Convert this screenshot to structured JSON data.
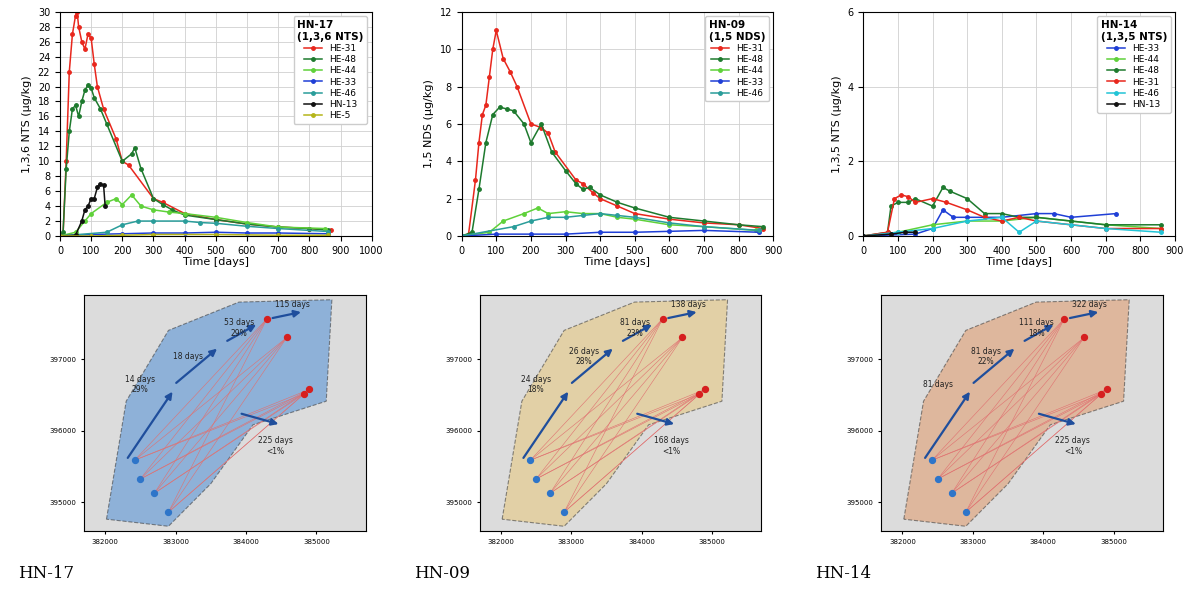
{
  "chart_data": [
    {
      "type": "line",
      "title": "HN-17\n(1,3,6 NTS)",
      "x_label": "Time [days]",
      "y_label": "1,3,6 NTS (µg/kg)",
      "xlim": [
        0,
        1000
      ],
      "xticks": [
        0,
        100,
        200,
        300,
        400,
        500,
        600,
        700,
        800,
        900,
        1000
      ],
      "ylim": [
        0,
        30
      ],
      "yticks": [
        0,
        2,
        4,
        6,
        8,
        10,
        12,
        14,
        16,
        18,
        20,
        22,
        24,
        26,
        28,
        30
      ],
      "grid": true,
      "legend": "upper right",
      "marker": "circle",
      "series": [
        {
          "name": "HE-31",
          "color": "#e8271d",
          "x": [
            0,
            10,
            20,
            30,
            40,
            50,
            55,
            60,
            70,
            80,
            90,
            100,
            110,
            120,
            140,
            180,
            200,
            220,
            300,
            330,
            400,
            500,
            600,
            700,
            800,
            870
          ],
          "values": [
            0,
            0.2,
            10,
            22,
            27,
            29.5,
            30,
            28,
            26,
            25,
            27,
            26.5,
            23,
            20,
            17,
            13,
            10,
            9.5,
            5,
            4.5,
            3,
            2.2,
            1.6,
            1.2,
            1,
            0.8
          ]
        },
        {
          "name": "HE-48",
          "color": "#1e7a2e",
          "x": [
            0,
            10,
            20,
            30,
            40,
            50,
            60,
            70,
            80,
            90,
            100,
            110,
            130,
            150,
            200,
            230,
            240,
            260,
            300,
            330,
            360,
            400,
            500,
            600,
            700,
            800,
            860
          ],
          "values": [
            0,
            0.5,
            9,
            14,
            17,
            17.5,
            16,
            18,
            19.5,
            20.2,
            19.8,
            18.5,
            17,
            15,
            10,
            11,
            11.8,
            9,
            5,
            4.2,
            3.5,
            2.8,
            2.2,
            1.6,
            1.2,
            1,
            0.8
          ]
        },
        {
          "name": "HE-44",
          "color": "#5fd13a",
          "x": [
            0,
            50,
            80,
            100,
            150,
            180,
            200,
            230,
            260,
            300,
            350,
            400,
            500,
            600,
            700,
            850
          ],
          "values": [
            0,
            0.5,
            2,
            3,
            4.5,
            5,
            4.2,
            5.5,
            4,
            3.5,
            3.2,
            3,
            2.5,
            1.8,
            1.2,
            1
          ]
        },
        {
          "name": "HE-33",
          "color": "#1f3fd6",
          "x": [
            0,
            100,
            200,
            300,
            400,
            500,
            600,
            700,
            860
          ],
          "values": [
            0,
            0.2,
            0.3,
            0.4,
            0.4,
            0.5,
            0.4,
            0.4,
            0.3
          ]
        },
        {
          "name": "HE-46",
          "color": "#2a9d9a",
          "x": [
            0,
            150,
            200,
            250,
            300,
            400,
            450,
            500,
            600,
            700,
            860
          ],
          "values": [
            0,
            0.5,
            1.5,
            2,
            2,
            2,
            1.8,
            1.7,
            1.3,
            1,
            0.6
          ]
        },
        {
          "name": "HN-13",
          "color": "#111111",
          "x": [
            0,
            50,
            70,
            80,
            90,
            100,
            110,
            120,
            130,
            140,
            145
          ],
          "values": [
            0,
            0.1,
            2,
            3.5,
            4,
            5,
            5,
            6.5,
            7,
            6.8,
            4
          ]
        },
        {
          "name": "HE-5",
          "color": "#b5b51a",
          "x": [
            0,
            100,
            200,
            300,
            500,
            700,
            860
          ],
          "values": [
            0,
            0,
            0.1,
            0.2,
            0.2,
            0.1,
            0.1
          ]
        }
      ]
    },
    {
      "type": "line",
      "title": "HN-09\n(1,5 NDS)",
      "x_label": "Time [days]",
      "y_label": "1,5 NDS (µg/kg)",
      "xlim": [
        0,
        900
      ],
      "xticks": [
        0,
        100,
        200,
        300,
        400,
        500,
        600,
        700,
        800,
        900
      ],
      "ylim": [
        0,
        12
      ],
      "yticks": [
        0,
        2,
        4,
        6,
        8,
        10,
        12
      ],
      "grid": true,
      "legend": "upper right",
      "marker": "circle",
      "series": [
        {
          "name": "HE-31",
          "color": "#e8271d",
          "x": [
            0,
            20,
            40,
            50,
            60,
            70,
            80,
            90,
            100,
            120,
            140,
            160,
            200,
            230,
            250,
            270,
            330,
            350,
            380,
            400,
            450,
            500,
            600,
            700,
            800,
            870
          ],
          "values": [
            0,
            0.1,
            3,
            5,
            6.5,
            7,
            8.5,
            10,
            11,
            9.5,
            8.8,
            8,
            6,
            5.8,
            5.5,
            4.5,
            3,
            2.8,
            2.3,
            2,
            1.6,
            1.2,
            0.9,
            0.7,
            0.6,
            0.4
          ]
        },
        {
          "name": "HE-48",
          "color": "#1e7a2e",
          "x": [
            0,
            30,
            50,
            70,
            90,
            110,
            130,
            150,
            180,
            200,
            230,
            260,
            300,
            330,
            350,
            370,
            400,
            450,
            500,
            600,
            700,
            800,
            870
          ],
          "values": [
            0,
            0.2,
            2.5,
            5,
            6.5,
            6.9,
            6.8,
            6.7,
            6,
            5,
            6,
            4.5,
            3.5,
            2.8,
            2.5,
            2.6,
            2.2,
            1.8,
            1.5,
            1,
            0.8,
            0.6,
            0.5
          ]
        },
        {
          "name": "HE-44",
          "color": "#5fd13a",
          "x": [
            0,
            80,
            120,
            180,
            220,
            250,
            300,
            350,
            400,
            450,
            500,
            600,
            700,
            850
          ],
          "values": [
            0,
            0.2,
            0.8,
            1.2,
            1.5,
            1.2,
            1.3,
            1.2,
            1.2,
            1,
            0.9,
            0.6,
            0.5,
            0.3
          ]
        },
        {
          "name": "HE-33",
          "color": "#1f3fd6",
          "x": [
            0,
            100,
            200,
            300,
            400,
            500,
            600,
            700,
            860
          ],
          "values": [
            0,
            0.1,
            0.1,
            0.1,
            0.2,
            0.2,
            0.25,
            0.3,
            0.2
          ]
        },
        {
          "name": "HE-46",
          "color": "#2a9d9a",
          "x": [
            0,
            150,
            200,
            250,
            300,
            350,
            400,
            450,
            500,
            600,
            700,
            860
          ],
          "values": [
            0,
            0.5,
            0.8,
            1,
            1,
            1.1,
            1.2,
            1.1,
            1,
            0.7,
            0.5,
            0.3
          ]
        }
      ]
    },
    {
      "type": "line",
      "title": "HN-14\n(1,3,5 NTS)",
      "x_label": "Time [days]",
      "y_label": "1,3,5 NTS (µg/kg)",
      "xlim": [
        0,
        900
      ],
      "xticks": [
        0,
        100,
        200,
        300,
        400,
        500,
        600,
        700,
        800,
        900
      ],
      "ylim": [
        0,
        6
      ],
      "yticks": [
        0,
        2,
        4,
        6
      ],
      "grid": true,
      "legend": "upper right",
      "marker": "circle",
      "series": [
        {
          "name": "HE-33",
          "color": "#1f3fd6",
          "x": [
            0,
            150,
            200,
            230,
            260,
            300,
            400,
            500,
            550,
            600,
            730
          ],
          "values": [
            0,
            0.05,
            0.2,
            0.7,
            0.5,
            0.5,
            0.5,
            0.6,
            0.6,
            0.5,
            0.6
          ]
        },
        {
          "name": "HE-44",
          "color": "#5fd13a",
          "x": [
            0,
            100,
            200,
            300,
            400,
            500,
            600,
            700,
            860
          ],
          "values": [
            0,
            0.1,
            0.3,
            0.4,
            0.4,
            0.5,
            0.4,
            0.3,
            0.2
          ]
        },
        {
          "name": "HE-48",
          "color": "#1e7a2e",
          "x": [
            0,
            70,
            80,
            100,
            130,
            150,
            200,
            230,
            250,
            300,
            350,
            400,
            450,
            500,
            600,
            700,
            860
          ],
          "values": [
            0,
            0.1,
            0.8,
            0.9,
            0.9,
            1,
            0.8,
            1.3,
            1.2,
            1,
            0.6,
            0.6,
            0.5,
            0.5,
            0.4,
            0.3,
            0.3
          ]
        },
        {
          "name": "HE-31",
          "color": "#e8271d",
          "x": [
            0,
            70,
            90,
            110,
            130,
            150,
            200,
            240,
            300,
            350,
            400,
            450,
            500,
            600,
            700,
            860
          ],
          "values": [
            0,
            0.1,
            1,
            1.1,
            1.05,
            0.9,
            1,
            0.9,
            0.7,
            0.5,
            0.4,
            0.5,
            0.4,
            0.3,
            0.2,
            0.2
          ]
        },
        {
          "name": "HE-46",
          "color": "#22c4d6",
          "x": [
            0,
            100,
            200,
            300,
            400,
            450,
            500,
            600,
            700,
            860
          ],
          "values": [
            0,
            0.1,
            0.2,
            0.4,
            0.5,
            0.1,
            0.4,
            0.3,
            0.2,
            0.1
          ]
        },
        {
          "name": "HN-13",
          "color": "#111111",
          "x": [
            0,
            80,
            120,
            150
          ],
          "values": [
            0,
            0.05,
            0.1,
            0.1
          ]
        }
      ]
    }
  ],
  "maps": [
    {
      "label": "HN-17",
      "color": "#4f8fd6",
      "xlim": [
        381700,
        385700
      ],
      "xticks": [
        382000,
        383000,
        384000,
        385000
      ],
      "ylim": [
        394600,
        397900
      ],
      "yticks": [
        395000,
        396000,
        397000
      ],
      "annotations": [
        "14 days\n29%",
        "18 days",
        "53 days\n29%",
        "115 days",
        "225 days\n<1%"
      ]
    },
    {
      "label": "HN-09",
      "color": "#e8c77a",
      "xlim": [
        381700,
        385700
      ],
      "xticks": [
        382000,
        383000,
        384000,
        385000
      ],
      "ylim": [
        394600,
        397900
      ],
      "yticks": [
        395000,
        396000,
        397000
      ],
      "annotations": [
        "24 days\n18%",
        "26 days\n28%",
        "81 days\n23%",
        "138 days",
        "168 days\n<1%"
      ]
    },
    {
      "label": "HN-14",
      "color": "#e09a6a",
      "xlim": [
        381700,
        385700
      ],
      "xticks": [
        382000,
        383000,
        384000,
        385000
      ],
      "ylim": [
        394600,
        397900
      ],
      "yticks": [
        395000,
        396000,
        397000
      ],
      "annotations": [
        "81 days",
        "81 days\n22%",
        "111 days\n18%",
        "322 days",
        "225 days\n<1%"
      ]
    }
  ]
}
